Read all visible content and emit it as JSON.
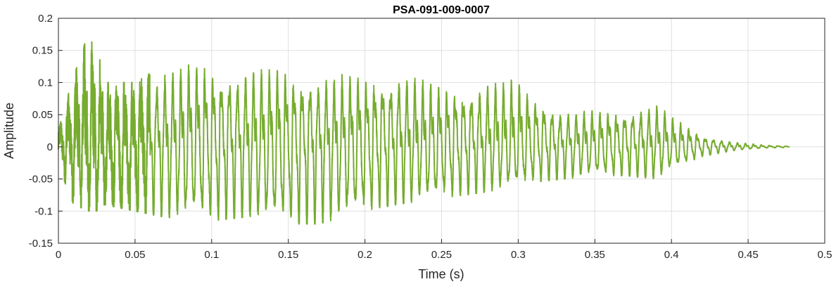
{
  "chart_data": {
    "type": "line",
    "title": "PSA-091-009-0007",
    "xlabel": "Time (s)",
    "ylabel": "Amplitude",
    "xlim": [
      0,
      0.5
    ],
    "ylim": [
      -0.15,
      0.2
    ],
    "xticks": [
      0,
      0.05,
      0.1,
      0.15,
      0.2,
      0.25,
      0.3,
      0.35,
      0.4,
      0.45,
      0.5
    ],
    "xtick_labels": [
      "0",
      "0.05",
      "0.1",
      "0.15",
      "0.2",
      "0.25",
      "0.3",
      "0.35",
      "0.4",
      "0.45",
      "0.5"
    ],
    "yticks": [
      -0.15,
      -0.1,
      -0.05,
      0,
      0.05,
      0.1,
      0.15,
      0.2
    ],
    "ytick_labels": [
      "-0.15",
      "-0.1",
      "-0.05",
      "0",
      "0.05",
      "0.1",
      "0.15",
      "0.2"
    ],
    "grid": true,
    "line_color": "#77ac30",
    "series": [
      {
        "duration": 0.477,
        "fundamental_hz": 190,
        "envelope_t": [
          0,
          0.01,
          0.02,
          0.025,
          0.03,
          0.05,
          0.07,
          0.09,
          0.1,
          0.12,
          0.15,
          0.17,
          0.2,
          0.22,
          0.25,
          0.28,
          0.3,
          0.31,
          0.33,
          0.35,
          0.37,
          0.39,
          0.4,
          0.42,
          0.44,
          0.46,
          0.477
        ],
        "envelope_pos": [
          0.03,
          0.11,
          0.18,
          0.16,
          0.1,
          0.1,
          0.13,
          0.14,
          0.14,
          0.13,
          0.13,
          0.12,
          0.12,
          0.13,
          0.1,
          0.11,
          0.11,
          0.09,
          0.06,
          0.06,
          0.065,
          0.072,
          0.05,
          0.02,
          0.008,
          0.003,
          0.001
        ],
        "envelope_neg": [
          -0.03,
          -0.09,
          -0.1,
          -0.1,
          -0.09,
          -0.1,
          -0.11,
          -0.11,
          -0.115,
          -0.11,
          -0.12,
          -0.12,
          -0.1,
          -0.09,
          -0.08,
          -0.07,
          -0.06,
          -0.055,
          -0.05,
          -0.045,
          -0.045,
          -0.05,
          -0.035,
          -0.015,
          -0.006,
          -0.002,
          -0.001
        ]
      }
    ]
  }
}
